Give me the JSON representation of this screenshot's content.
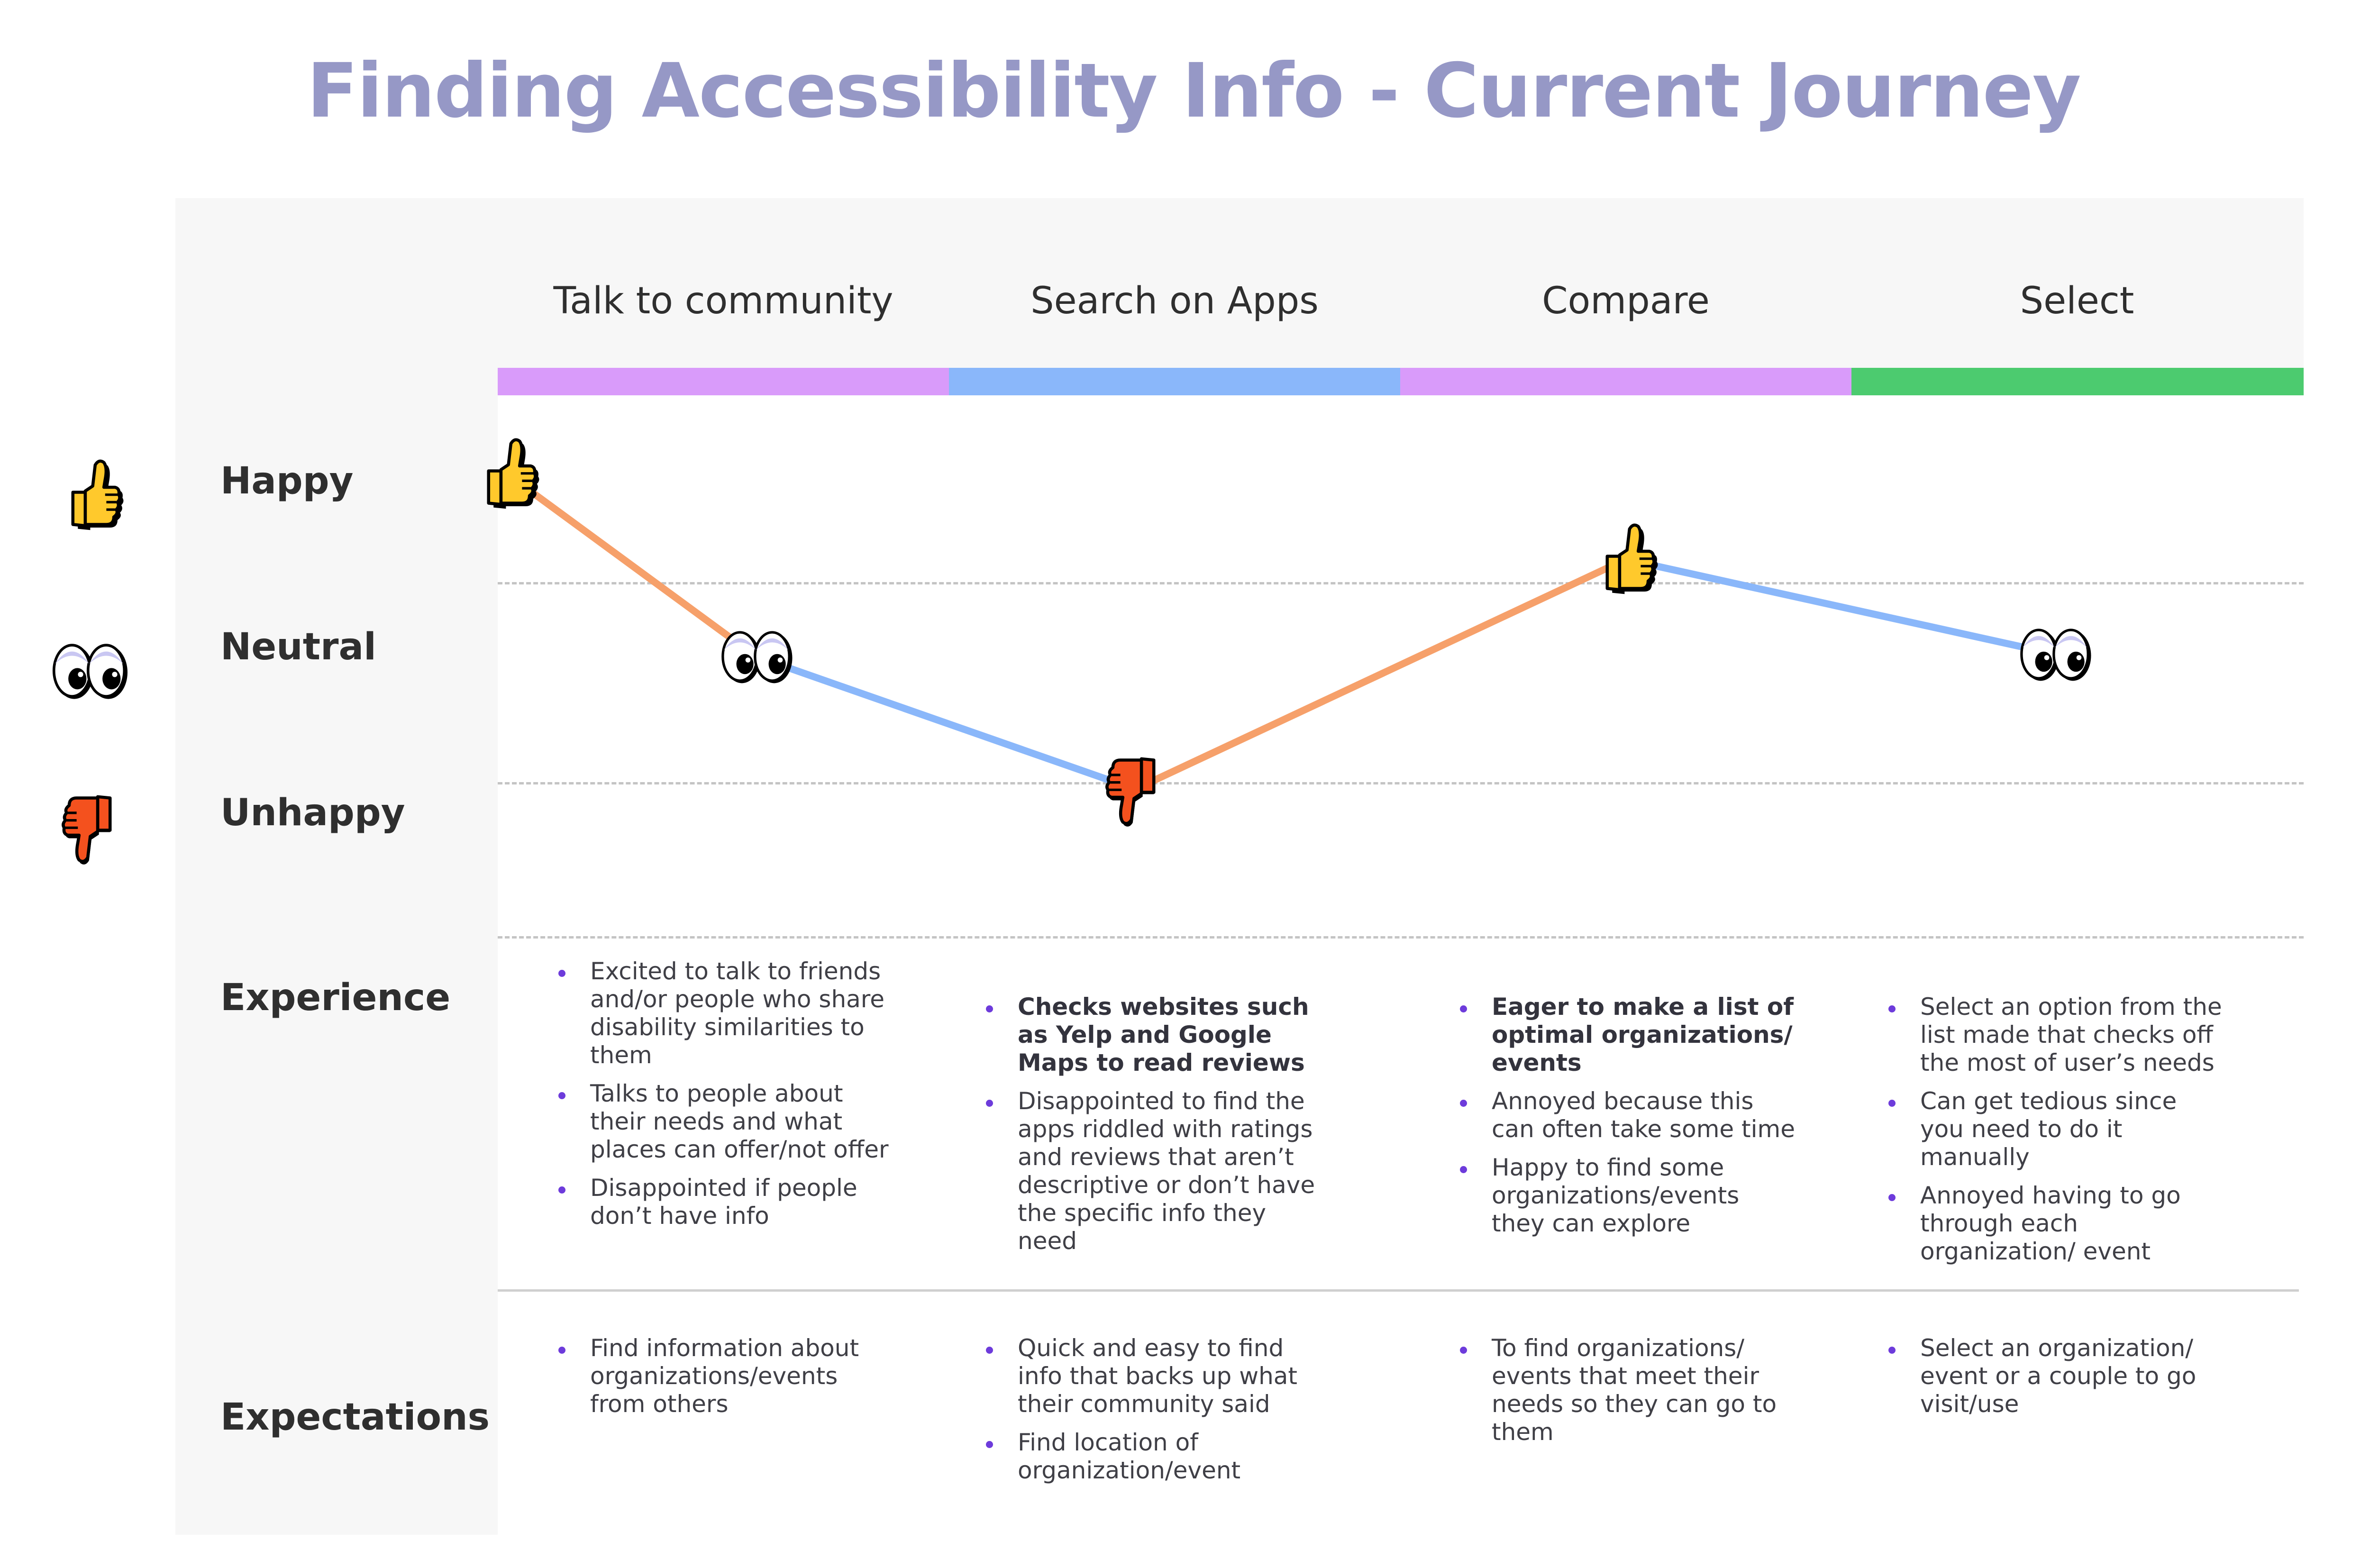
{
  "title": "Finding Accessibility Info - Current Journey",
  "stages": [
    {
      "label": "Talk to community",
      "color": "#d99bfa"
    },
    {
      "label": "Search on Apps",
      "color": "#8ab7fa"
    },
    {
      "label": "Compare",
      "color": "#d99bfa"
    },
    {
      "label": "Select",
      "color": "#4ccb6f"
    }
  ],
  "rows": {
    "happy": "Happy",
    "neutral": "Neutral",
    "unhappy": "Unhappy",
    "experience": "Experience",
    "expectations": "Expectations"
  },
  "icons": {
    "happy": "thumbs-up-icon",
    "neutral": "eyes-icon",
    "unhappy": "thumbs-down-icon"
  },
  "curve": {
    "points": [
      {
        "stage": "Talk to community",
        "mood": "happy"
      },
      {
        "stage": "Talk to community",
        "mood": "neutral"
      },
      {
        "stage": "Search on Apps",
        "mood": "unhappy"
      },
      {
        "stage": "Compare",
        "mood": "happy"
      },
      {
        "stage": "Select",
        "mood": "neutral"
      }
    ],
    "rising_color": "#f6a06a",
    "falling_color": "#8ab7fa"
  },
  "experience": [
    [
      "Excited to talk to friends and/or people who share disability similarities to them",
      "Talks to people about their needs and what places can offer/not offer",
      "Disappointed if people don’t have info"
    ],
    [
      "Checks websites such as Yelp and Google Maps to read reviews",
      "Disappointed to find the apps riddled with ratings and reviews that aren’t descriptive or don’t have the specific info they need"
    ],
    [
      "Eager to make a list of optimal organizations/ events",
      "Annoyed because this can often take some time",
      "Happy to find some organizations/events they can explore"
    ],
    [
      "Select an option from the list made that checks off the most of user’s needs",
      "Can get tedious since you need to do it manually",
      "Annoyed having to go through each organization/ event"
    ]
  ],
  "expectations": [
    [
      "Find information about organizations/events from others"
    ],
    [
      "Quick and easy to find info that backs up what their community said",
      "Find location of organization/event"
    ],
    [
      "To find organizations/ events that meet their needs so they can go to them"
    ],
    [
      "Select an organization/ event or a couple to go visit/use"
    ]
  ]
}
